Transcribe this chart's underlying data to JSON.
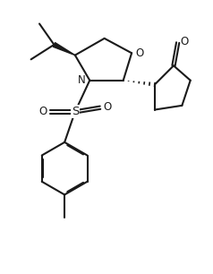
{
  "bg_color": "#ffffff",
  "line_color": "#1a1a1a",
  "line_width": 1.5,
  "figsize": [
    2.38,
    3.06
  ],
  "dpi": 100,
  "xlim": [
    0,
    10
  ],
  "ylim": [
    0,
    13
  ]
}
